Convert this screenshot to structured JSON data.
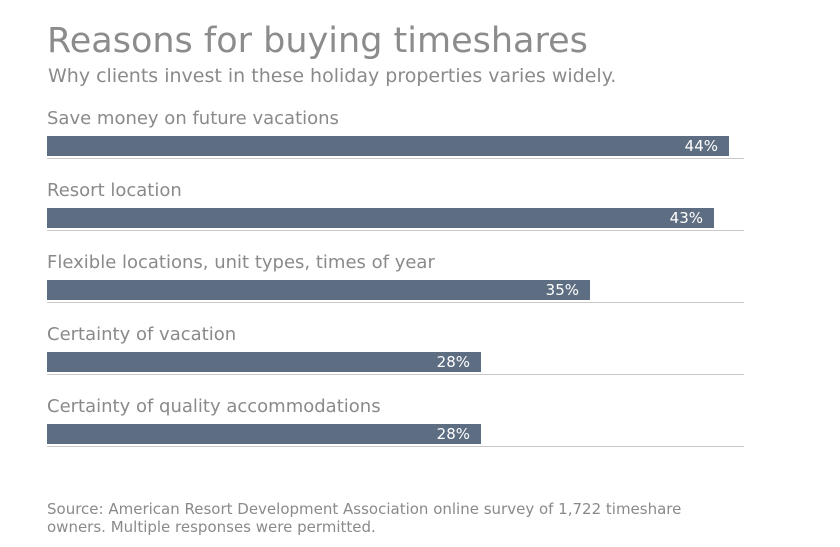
{
  "title": "Reasons for buying timeshares",
  "subtitle": "Why clients invest in these holiday properties varies widely.",
  "source": "Source: American Resort Development Association online survey of 1,722 timeshare owners. Multiple responses were permitted.",
  "colors": {
    "bar": "#5e6e82",
    "bar_text": "#ffffff",
    "text": "#8a8a8a",
    "rule": "#c8c8c8"
  },
  "chart_data": {
    "type": "bar",
    "orientation": "horizontal",
    "categories": [
      "Save money on future vacations",
      "Resort location",
      "Flexible locations, unit types, times of year",
      "Certainty of vacation",
      "Certainty of quality accommodations"
    ],
    "values": [
      44,
      43,
      35,
      28,
      28
    ],
    "value_labels": [
      "44%",
      "43%",
      "35%",
      "28%",
      "28%"
    ],
    "unit": "%",
    "grid": false
  }
}
